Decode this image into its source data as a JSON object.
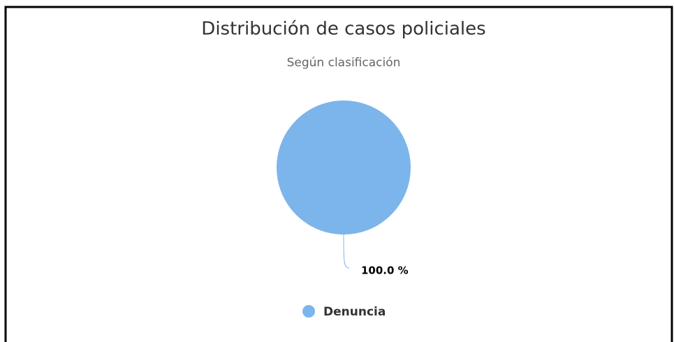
{
  "chart_data": {
    "type": "pie",
    "title": "Distribución de casos policiales",
    "subtitle": "Según clasificación",
    "categories": [
      "Denuncia"
    ],
    "values": [
      100
    ],
    "value_labels": [
      "100.0 %"
    ],
    "colors": [
      "#7cb5ec"
    ],
    "legend": "bottom"
  }
}
